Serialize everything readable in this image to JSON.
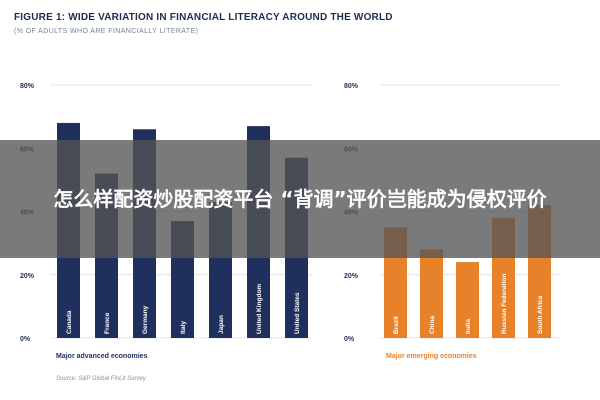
{
  "figure": {
    "title": "FIGURE 1: WIDE VARIATION IN FINANCIAL LITERACY AROUND THE WORLD",
    "subtitle": "(% OF ADULTS WHO ARE FINANCIALLY LITERATE)",
    "source": "Source: S&P Global FinLit Survey"
  },
  "overlay": {
    "headline": "怎么样配资炒股配资平台 “背调”评价岂能成为侵权评价"
  },
  "chart_data": [
    {
      "type": "bar",
      "xlabel": "Major advanced economies",
      "ylim": [
        0,
        80
      ],
      "yticks": [
        "0%",
        "20%",
        "40%",
        "60%",
        "80%"
      ],
      "categories": [
        "Canada",
        "France",
        "Germany",
        "Italy",
        "Japan",
        "United Kingdom",
        "United States"
      ],
      "values": [
        68,
        52,
        66,
        37,
        43,
        67,
        57
      ],
      "color": "#1f2f5e"
    },
    {
      "type": "bar",
      "xlabel": "Major emerging economies",
      "ylim": [
        0,
        80
      ],
      "yticks": [
        "0%",
        "20%",
        "40%",
        "60%",
        "80%"
      ],
      "categories": [
        "Brazil",
        "China",
        "India",
        "Russian Federation",
        "South Africa"
      ],
      "values": [
        35,
        28,
        24,
        38,
        42
      ],
      "color": "#e8822a"
    }
  ]
}
